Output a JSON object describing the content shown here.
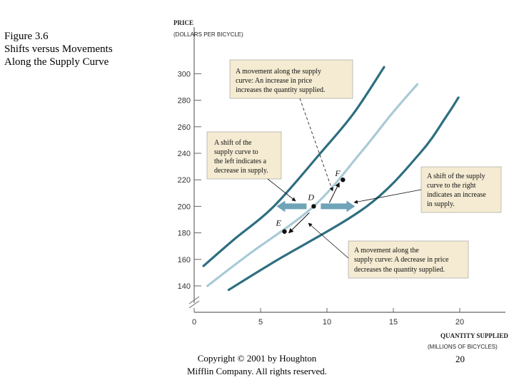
{
  "figure": {
    "title_lines": [
      "Figure 3.6",
      "Shifts versus Movements",
      "Along the Supply Curve"
    ]
  },
  "footer": {
    "copyright_lines": [
      "Copyright © 2001 by Houghton",
      "Mifflin Company. All rights reserved."
    ],
    "page_number": "20"
  },
  "colors": {
    "dark_curve": "#2e6e80",
    "light_curve": "#a9cad6",
    "annotation_box": "#f4ebd2",
    "shift_arrow": "#6fa3b8"
  },
  "chart_data": {
    "type": "line",
    "title": "",
    "ylabel": "PRICE",
    "ylabel_sub": "(DOLLARS PER BICYCLE)",
    "xlabel": "QUANTITY SUPPLIED",
    "xlabel_sub": "(MILLIONS OF BICYCLES)",
    "xlim": [
      0,
      23
    ],
    "ylim": [
      130,
      320
    ],
    "x_ticks": [
      0,
      5,
      10,
      15,
      20
    ],
    "y_ticks": [
      140,
      160,
      180,
      200,
      220,
      240,
      260,
      280,
      300
    ],
    "axis_break": true,
    "series": [
      {
        "name": "Supply shifted left",
        "style": "dark",
        "points": [
          [
            0.7,
            155
          ],
          [
            3.0,
            175
          ],
          [
            6.0,
            200
          ],
          [
            9.5,
            240
          ],
          [
            12.0,
            270
          ],
          [
            14.3,
            305
          ]
        ]
      },
      {
        "name": "Original supply",
        "style": "light",
        "points": [
          [
            1.0,
            140
          ],
          [
            4.0,
            163
          ],
          [
            9.0,
            200
          ],
          [
            12.5,
            240
          ],
          [
            14.9,
            270
          ],
          [
            16.8,
            292
          ]
        ]
      },
      {
        "name": "Supply shifted right",
        "style": "dark",
        "points": [
          [
            2.6,
            137
          ],
          [
            6.0,
            158
          ],
          [
            13.0,
            200
          ],
          [
            17.0,
            240
          ],
          [
            19.0,
            268
          ],
          [
            19.9,
            282
          ]
        ]
      }
    ],
    "points": [
      {
        "label": "D",
        "x": 9.0,
        "y": 200
      },
      {
        "label": "F",
        "x": 11.2,
        "y": 220
      },
      {
        "label": "E",
        "x": 6.8,
        "y": 181
      }
    ],
    "annotations": [
      {
        "id": "movement-up",
        "lines": [
          "A movement along the supply",
          "curve: An increase in price",
          "increases the quantity supplied."
        ]
      },
      {
        "id": "shift-left",
        "lines": [
          "A shift of the",
          "supply curve to",
          "the left indicates a",
          "decrease in supply."
        ]
      },
      {
        "id": "shift-right",
        "lines": [
          "A shift of the supply",
          "curve to the right",
          "indicates an increase",
          "in supply."
        ]
      },
      {
        "id": "movement-down",
        "lines": [
          "A movement along the",
          "supply curve: A decrease in price",
          "decreases the quantity supplied."
        ]
      }
    ]
  }
}
